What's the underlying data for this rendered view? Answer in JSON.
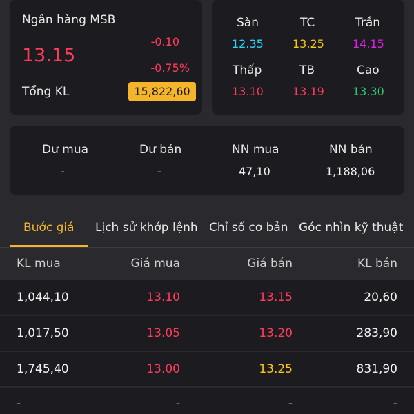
{
  "stock": {
    "name": "Ngân hàng MSB",
    "price": "13.15",
    "change": "-0.10",
    "change_pct": "-0.75%",
    "volume_label": "Tổng KL",
    "volume_value": "15,822,60"
  },
  "range": {
    "san_label": "Sàn",
    "san_value": "12.35",
    "tc_label": "TC",
    "tc_value": "13.25",
    "tran_label": "Trần",
    "tran_value": "14.15",
    "thap_label": "Thấp",
    "thap_value": "13.10",
    "tb_label": "TB",
    "tb_value": "13.19",
    "cao_label": "Cao",
    "cao_value": "13.30"
  },
  "foreign": {
    "du_mua_label": "Dư mua",
    "du_mua_value": "-",
    "du_ban_label": "Dư bán",
    "du_ban_value": "-",
    "nn_mua_label": "NN mua",
    "nn_mua_value": "47,10",
    "nn_ban_label": "NN bán",
    "nn_ban_value": "1,188,06"
  },
  "tabs": [
    "Bước giá",
    "Lịch sử khớp lệnh",
    "Chỉ số cơ bản",
    "Góc nhìn kỹ thuật"
  ],
  "orderbook": {
    "headers": [
      "KL mua",
      "Giá mua",
      "Giá bán",
      "KL bán"
    ],
    "rows": [
      [
        "1,044,10",
        "13.10",
        "13.15",
        "20,60"
      ],
      [
        "1,017,50",
        "13.05",
        "13.20",
        "283,90"
      ],
      [
        "1,745,40",
        "13.00",
        "13.25",
        "831,90"
      ],
      [
        "-",
        "-",
        "-",
        "-"
      ]
    ]
  },
  "colors": {
    "down": "#ff3b5c",
    "reference": "#f5c518",
    "floor": "#2ad4ff",
    "ceiling": "#e020e6",
    "up": "#2ecc71",
    "accent": "#f5b52b"
  }
}
